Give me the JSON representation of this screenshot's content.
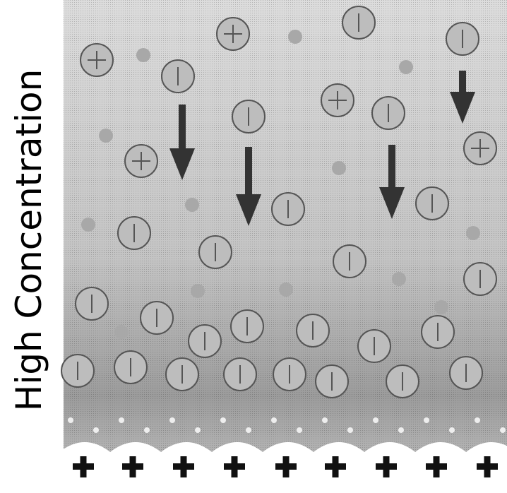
{
  "label": {
    "text": "High Concentration"
  }
}
